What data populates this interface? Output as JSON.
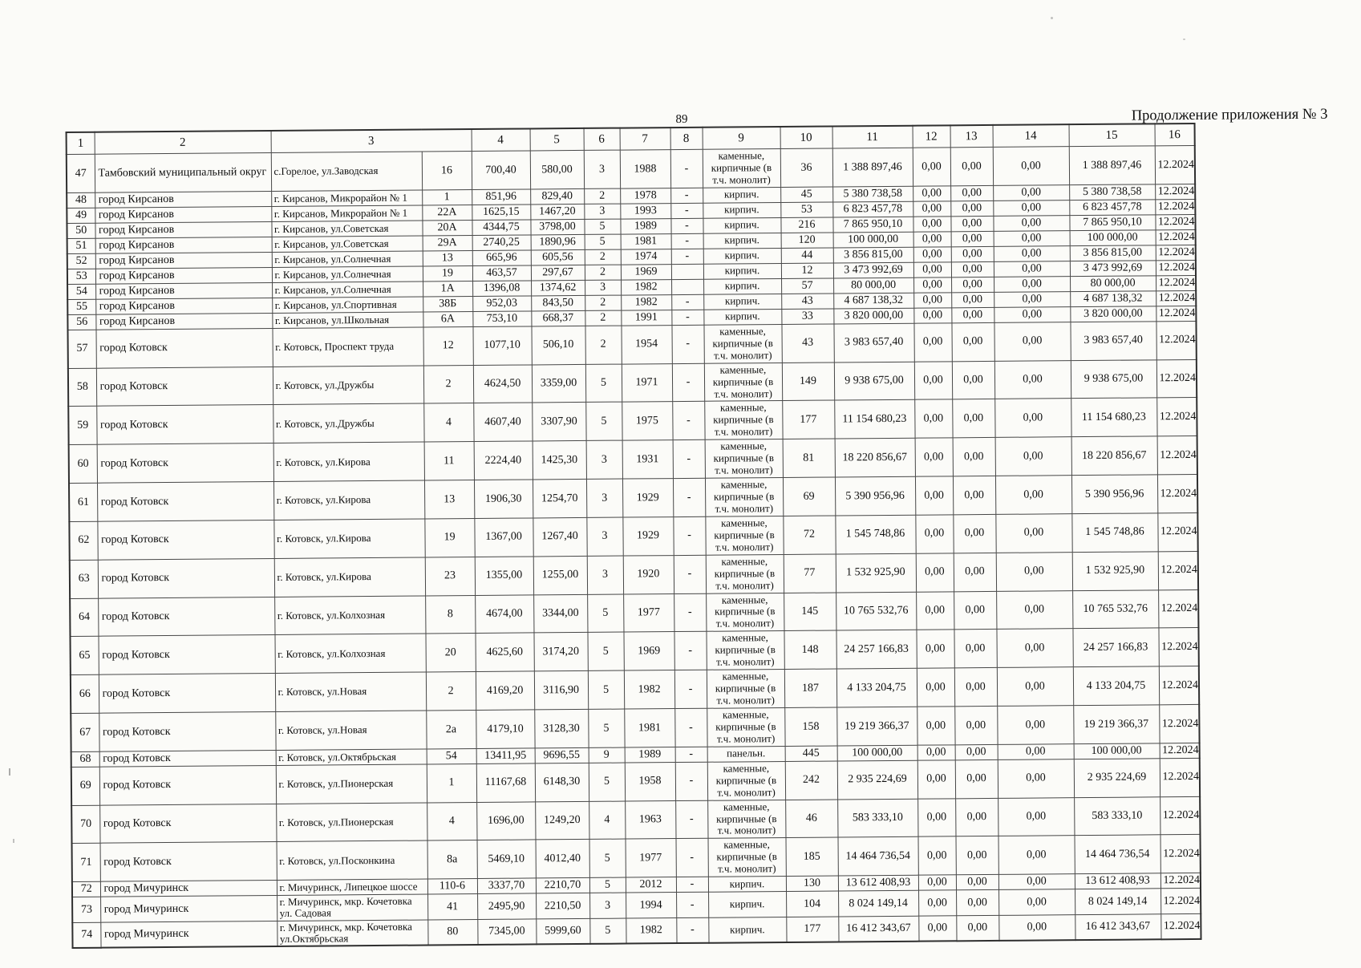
{
  "page": {
    "number": "89",
    "continuation_title": "Продолжение приложения № 3"
  },
  "table": {
    "header_cells": [
      "1",
      "2",
      "3",
      "4",
      "5",
      "6",
      "7",
      "8",
      "9",
      "10",
      "11",
      "12",
      "13",
      "14",
      "15",
      "16"
    ],
    "rows": [
      {
        "h": "t",
        "cells": [
          "47",
          "Тамбовский муниципальный округ",
          "с.Горелое, ул.Заводская",
          "16",
          "700,40",
          "580,00",
          "3",
          "1988",
          "-",
          "каменные, кирпичные (в т.ч. монолит)",
          "36",
          "1 388 897,46",
          "0,00",
          "0,00",
          "0,00",
          "1 388 897,46",
          "12.2024"
        ]
      },
      {
        "h": "s",
        "cells": [
          "48",
          "город Кирсанов",
          "г. Кирсанов, Микрорайон № 1",
          "1",
          "851,96",
          "829,40",
          "2",
          "1978",
          "-",
          "кирпич.",
          "45",
          "5 380 738,58",
          "0,00",
          "0,00",
          "0,00",
          "5 380 738,58",
          "12.2024"
        ]
      },
      {
        "h": "s",
        "cells": [
          "49",
          "город Кирсанов",
          "г. Кирсанов, Микрорайон № 1",
          "22А",
          "1625,15",
          "1467,20",
          "3",
          "1993",
          "-",
          "кирпич.",
          "53",
          "6 823 457,78",
          "0,00",
          "0,00",
          "0,00",
          "6 823 457,78",
          "12.2024"
        ]
      },
      {
        "h": "s",
        "cells": [
          "50",
          "город Кирсанов",
          "г. Кирсанов, ул.Советская",
          "20А",
          "4344,75",
          "3798,00",
          "5",
          "1989",
          "-",
          "кирпич.",
          "216",
          "7 865 950,10",
          "0,00",
          "0,00",
          "0,00",
          "7 865 950,10",
          "12.2024"
        ]
      },
      {
        "h": "s",
        "cells": [
          "51",
          "город Кирсанов",
          "г. Кирсанов, ул.Советская",
          "29А",
          "2740,25",
          "1890,96",
          "5",
          "1981",
          "-",
          "кирпич.",
          "120",
          "100 000,00",
          "0,00",
          "0,00",
          "0,00",
          "100 000,00",
          "12.2024"
        ]
      },
      {
        "h": "s",
        "cells": [
          "52",
          "город Кирсанов",
          "г. Кирсанов, ул.Солнечная",
          "13",
          "665,96",
          "605,56",
          "2",
          "1974",
          "-",
          "кирпич.",
          "44",
          "3 856 815,00",
          "0,00",
          "0,00",
          "0,00",
          "3 856 815,00",
          "12.2024"
        ]
      },
      {
        "h": "s",
        "cells": [
          "53",
          "город Кирсанов",
          "г. Кирсанов, ул.Солнечная",
          "19",
          "463,57",
          "297,67",
          "2",
          "1969",
          "",
          "кирпич.",
          "12",
          "3 473 992,69",
          "0,00",
          "0,00",
          "0,00",
          "3 473 992,69",
          "12.2024"
        ]
      },
      {
        "h": "s",
        "cells": [
          "54",
          "город Кирсанов",
          "г. Кирсанов, ул.Солнечная",
          "1А",
          "1396,08",
          "1374,62",
          "3",
          "1982",
          "",
          "кирпич.",
          "57",
          "80 000,00",
          "0,00",
          "0,00",
          "0,00",
          "80 000,00",
          "12.2024"
        ]
      },
      {
        "h": "s",
        "cells": [
          "55",
          "город Кирсанов",
          "г. Кирсанов, ул.Спортивная",
          "38Б",
          "952,03",
          "843,50",
          "2",
          "1982",
          "-",
          "кирпич.",
          "43",
          "4 687 138,32",
          "0,00",
          "0,00",
          "0,00",
          "4 687 138,32",
          "12.2024"
        ]
      },
      {
        "h": "s",
        "cells": [
          "56",
          "город Кирсанов",
          "г. Кирсанов, ул.Школьная",
          "6А",
          "753,10",
          "668,37",
          "2",
          "1991",
          "-",
          "кирпич.",
          "33",
          "3 820 000,00",
          "0,00",
          "0,00",
          "0,00",
          "3 820 000,00",
          "12.2024"
        ]
      },
      {
        "h": "t",
        "cells": [
          "57",
          "город Котовск",
          "г. Котовск, Проспект труда",
          "12",
          "1077,10",
          "506,10",
          "2",
          "1954",
          "-",
          "каменные, кирпичные (в т.ч. монолит)",
          "43",
          "3 983 657,40",
          "0,00",
          "0,00",
          "0,00",
          "3 983 657,40",
          "12.2024"
        ]
      },
      {
        "h": "t",
        "cells": [
          "58",
          "город Котовск",
          "г. Котовск, ул.Дружбы",
          "2",
          "4624,50",
          "3359,00",
          "5",
          "1971",
          "-",
          "каменные, кирпичные (в т.ч. монолит)",
          "149",
          "9 938 675,00",
          "0,00",
          "0,00",
          "0,00",
          "9 938 675,00",
          "12.2024"
        ]
      },
      {
        "h": "t",
        "cells": [
          "59",
          "город Котовск",
          "г. Котовск, ул.Дружбы",
          "4",
          "4607,40",
          "3307,90",
          "5",
          "1975",
          "-",
          "каменные, кирпичные (в т.ч. монолит)",
          "177",
          "11 154 680,23",
          "0,00",
          "0,00",
          "0,00",
          "11 154 680,23",
          "12.2024"
        ]
      },
      {
        "h": "t",
        "cells": [
          "60",
          "город Котовск",
          "г. Котовск, ул.Кирова",
          "11",
          "2224,40",
          "1425,30",
          "3",
          "1931",
          "-",
          "каменные, кирпичные (в т.ч. монолит)",
          "81",
          "18 220 856,67",
          "0,00",
          "0,00",
          "0,00",
          "18 220 856,67",
          "12.2024"
        ]
      },
      {
        "h": "t",
        "cells": [
          "61",
          "город Котовск",
          "г. Котовск, ул.Кирова",
          "13",
          "1906,30",
          "1254,70",
          "3",
          "1929",
          "-",
          "каменные, кирпичные (в т.ч. монолит)",
          "69",
          "5 390 956,96",
          "0,00",
          "0,00",
          "0,00",
          "5 390 956,96",
          "12.2024"
        ]
      },
      {
        "h": "t",
        "cells": [
          "62",
          "город Котовск",
          "г. Котовск, ул.Кирова",
          "19",
          "1367,00",
          "1267,40",
          "3",
          "1929",
          "-",
          "каменные, кирпичные (в т.ч. монолит)",
          "72",
          "1 545 748,86",
          "0,00",
          "0,00",
          "0,00",
          "1 545 748,86",
          "12.2024"
        ]
      },
      {
        "h": "t",
        "cells": [
          "63",
          "город Котовск",
          "г. Котовск, ул.Кирова",
          "23",
          "1355,00",
          "1255,00",
          "3",
          "1920",
          "-",
          "каменные, кирпичные (в т.ч. монолит)",
          "77",
          "1 532 925,90",
          "0,00",
          "0,00",
          "0,00",
          "1 532 925,90",
          "12.2024"
        ]
      },
      {
        "h": "t",
        "cells": [
          "64",
          "город Котовск",
          "г. Котовск, ул.Колхозная",
          "8",
          "4674,00",
          "3344,00",
          "5",
          "1977",
          "-",
          "каменные, кирпичные (в т.ч. монолит)",
          "145",
          "10 765 532,76",
          "0,00",
          "0,00",
          "0,00",
          "10 765 532,76",
          "12.2024"
        ]
      },
      {
        "h": "t",
        "cells": [
          "65",
          "город Котовск",
          "г. Котовск, ул.Колхозная",
          "20",
          "4625,60",
          "3174,20",
          "5",
          "1969",
          "-",
          "каменные, кирпичные (в т.ч. монолит)",
          "148",
          "24 257 166,83",
          "0,00",
          "0,00",
          "0,00",
          "24 257 166,83",
          "12.2024"
        ]
      },
      {
        "h": "t",
        "cells": [
          "66",
          "город Котовск",
          "г. Котовск, ул.Новая",
          "2",
          "4169,20",
          "3116,90",
          "5",
          "1982",
          "-",
          "каменные, кирпичные (в т.ч. монолит)",
          "187",
          "4 133 204,75",
          "0,00",
          "0,00",
          "0,00",
          "4 133 204,75",
          "12.2024"
        ]
      },
      {
        "h": "t",
        "cells": [
          "67",
          "город Котовск",
          "г. Котовск, ул.Новая",
          "2а",
          "4179,10",
          "3128,30",
          "5",
          "1981",
          "-",
          "каменные, кирпичные (в т.ч. монолит)",
          "158",
          "19 219 366,37",
          "0,00",
          "0,00",
          "0,00",
          "19 219 366,37",
          "12.2024"
        ]
      },
      {
        "h": "s",
        "cells": [
          "68",
          "город Котовск",
          "г. Котовск, ул.Октябрьская",
          "54",
          "13411,95",
          "9696,55",
          "9",
          "1989",
          "-",
          "панельн.",
          "445",
          "100 000,00",
          "0,00",
          "0,00",
          "0,00",
          "100 000,00",
          "12.2024"
        ]
      },
      {
        "h": "t",
        "cells": [
          "69",
          "город Котовск",
          "г. Котовск, ул.Пионерская",
          "1",
          "11167,68",
          "6148,30",
          "5",
          "1958",
          "-",
          "каменные, кирпичные (в т.ч. монолит)",
          "242",
          "2 935 224,69",
          "0,00",
          "0,00",
          "0,00",
          "2 935 224,69",
          "12.2024"
        ]
      },
      {
        "h": "t",
        "cells": [
          "70",
          "город Котовск",
          "г. Котовск, ул.Пионерская",
          "4",
          "1696,00",
          "1249,20",
          "4",
          "1963",
          "-",
          "каменные, кирпичные (в т.ч. монолит)",
          "46",
          "583 333,10",
          "0,00",
          "0,00",
          "0,00",
          "583 333,10",
          "12.2024"
        ]
      },
      {
        "h": "t",
        "cells": [
          "71",
          "город Котовск",
          "г. Котовск, ул.Посконкина",
          "8а",
          "5469,10",
          "4012,40",
          "5",
          "1977",
          "-",
          "каменные, кирпичные (в т.ч. монолит)",
          "185",
          "14 464 736,54",
          "0,00",
          "0,00",
          "0,00",
          "14 464 736,54",
          "12.2024"
        ]
      },
      {
        "h": "s",
        "cells": [
          "72",
          "город Мичуринск",
          "г. Мичуринск, Липецкое шоссе",
          "110-6",
          "3337,70",
          "2210,70",
          "5",
          "2012",
          "-",
          "кирпич.",
          "130",
          "13 612 408,93",
          "0,00",
          "0,00",
          "0,00",
          "13 612 408,93",
          "12.2024"
        ]
      },
      {
        "h": "m",
        "cells": [
          "73",
          "город Мичуринск",
          "г. Мичуринск, мкр. Кочетовка ул. Садовая",
          "41",
          "2495,90",
          "2210,50",
          "3",
          "1994",
          "-",
          "кирпич.",
          "104",
          "8 024 149,14",
          "0,00",
          "0,00",
          "0,00",
          "8 024 149,14",
          "12.2024"
        ]
      },
      {
        "h": "m",
        "cells": [
          "74",
          "город Мичуринск",
          "г. Мичуринск, мкр. Кочетовка ул.Октябрьская",
          "80",
          "7345,00",
          "5999,60",
          "5",
          "1982",
          "-",
          "кирпич.",
          "177",
          "16 412 343,67",
          "0,00",
          "0,00",
          "0,00",
          "16 412 343,67",
          "12.2024"
        ]
      }
    ]
  }
}
